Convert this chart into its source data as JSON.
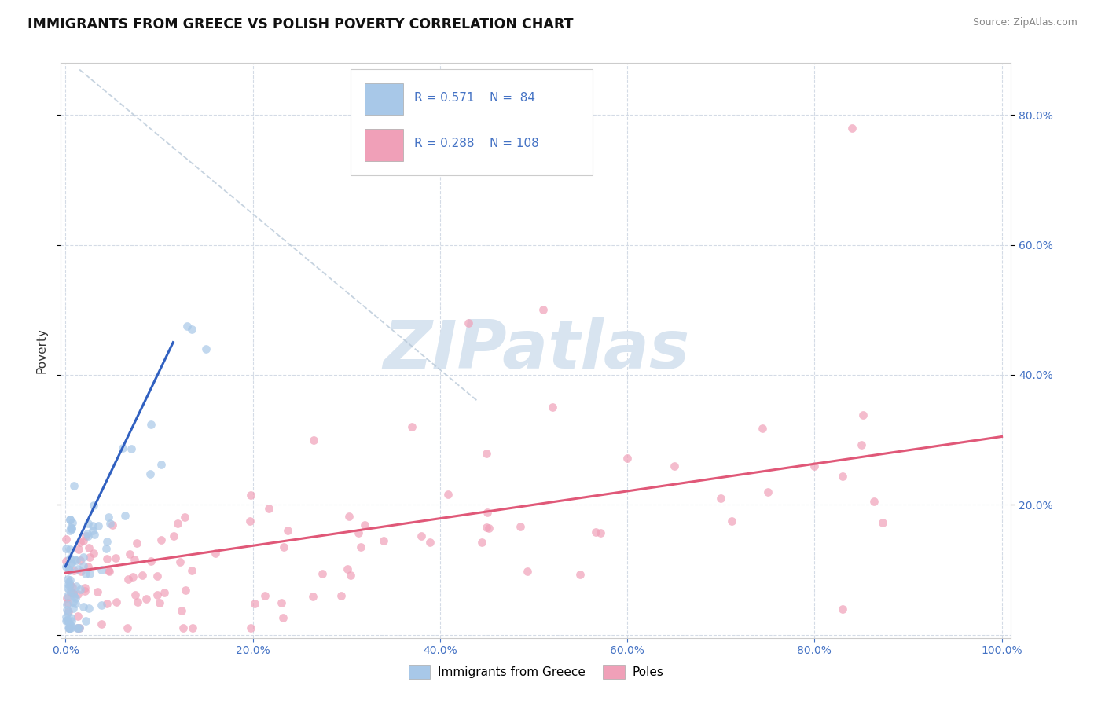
{
  "title": "IMMIGRANTS FROM GREECE VS POLISH POVERTY CORRELATION CHART",
  "source": "Source: ZipAtlas.com",
  "ylabel": "Poverty",
  "greece_R": 0.571,
  "greece_N": 84,
  "poles_R": 0.288,
  "poles_N": 108,
  "greece_color": "#a8c8e8",
  "poles_color": "#f0a0b8",
  "greece_line_color": "#3060c0",
  "poles_line_color": "#e05878",
  "ref_line_color": "#b8c8d8",
  "legend_text_color": "#4472c4",
  "watermark_text": "ZIPatlas",
  "watermark_color": "#d8e4f0",
  "background_color": "#ffffff",
  "grid_color": "#d0d8e4",
  "xlim": [
    0.0,
    1.0
  ],
  "ylim": [
    0.0,
    0.88
  ],
  "xticks": [
    0.0,
    0.2,
    0.4,
    0.6,
    0.8,
    1.0
  ],
  "yticks": [
    0.0,
    0.2,
    0.4,
    0.6,
    0.8
  ],
  "legend_greece_label": "Immigrants from Greece",
  "legend_poles_label": "Poles"
}
